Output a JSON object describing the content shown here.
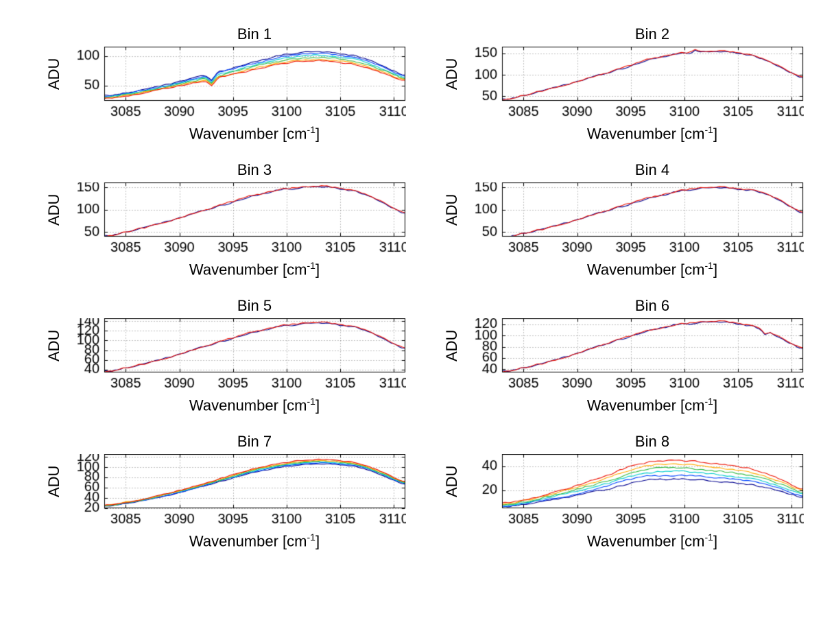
{
  "figure": {
    "background": "#ffffff"
  },
  "labels": {
    "ylabel": "ADU",
    "xlabel_pre": "Wavenumber [cm",
    "xlabel_sup": "-1",
    "xlabel_post": "]"
  },
  "axes_common": {
    "xlim": [
      3083,
      3111
    ],
    "xticks": [
      3085,
      3090,
      3095,
      3100,
      3105,
      3110
    ],
    "x_control": [
      3083,
      3085,
      3087,
      3089,
      3091,
      3093,
      3095,
      3097,
      3099,
      3101,
      3103,
      3105,
      3107,
      3109,
      3111
    ],
    "grid": true,
    "legend": null
  },
  "chart_data": [
    {
      "type": "line",
      "title": "Bin 1",
      "xlabel": "Wavenumber [cm^-1]",
      "ylabel": "ADU",
      "ylim": [
        25,
        115
      ],
      "yticks": [
        50,
        100
      ],
      "noise": 1.5,
      "spikes": [
        {
          "x": 3093,
          "dy": -10,
          "width": 0.6
        }
      ],
      "series": [
        {
          "name": "trace-1",
          "color": "#00008f",
          "values": [
            33,
            38,
            45,
            53,
            62,
            70,
            80,
            90,
            99,
            105,
            107,
            104,
            97,
            83,
            68
          ]
        },
        {
          "name": "trace-2",
          "color": "#0044ff",
          "values": [
            32,
            37,
            44,
            51,
            60,
            68,
            78,
            87,
            96,
            102,
            104,
            101,
            94,
            81,
            66
          ]
        },
        {
          "name": "trace-3",
          "color": "#00cccc",
          "values": [
            31,
            36,
            42,
            50,
            58,
            66,
            75,
            85,
            93,
            99,
            101,
            98,
            91,
            78,
            64
          ]
        },
        {
          "name": "trace-4",
          "color": "#33bb44",
          "values": [
            30,
            35,
            41,
            48,
            56,
            64,
            73,
            82,
            90,
            96,
            97,
            95,
            88,
            76,
            62
          ]
        },
        {
          "name": "trace-5",
          "color": "#ffaa00",
          "values": [
            29,
            33,
            40,
            47,
            55,
            62,
            70,
            79,
            87,
            92,
            94,
            92,
            85,
            73,
            60
          ]
        },
        {
          "name": "trace-6",
          "color": "#ee1100",
          "values": [
            28,
            33,
            39,
            46,
            53,
            60,
            69,
            77,
            85,
            90,
            92,
            89,
            83,
            71,
            59
          ]
        }
      ]
    },
    {
      "type": "line",
      "title": "Bin 2",
      "xlabel": "Wavenumber [cm^-1]",
      "ylabel": "ADU",
      "ylim": [
        40,
        165
      ],
      "yticks": [
        50,
        100,
        150
      ],
      "noise": 2.5,
      "spikes": [
        {
          "x": 3101,
          "dy": 7,
          "width": 0.4
        }
      ],
      "series": [
        {
          "name": "trace-1",
          "color": "#00008f",
          "values": [
            42,
            52,
            65,
            78,
            92,
            106,
            121,
            137,
            147,
            152,
            154,
            151,
            139,
            117,
            94
          ]
        },
        {
          "name": "trace-2",
          "color": "#ee1100",
          "values": [
            42,
            52,
            65,
            78,
            92,
            106,
            122,
            138,
            148,
            153,
            155,
            152,
            140,
            118,
            95
          ]
        }
      ]
    },
    {
      "type": "line",
      "title": "Bin 3",
      "xlabel": "Wavenumber [cm^-1]",
      "ylabel": "ADU",
      "ylim": [
        40,
        160
      ],
      "yticks": [
        50,
        100,
        150
      ],
      "noise": 2.5,
      "spikes": [],
      "series": [
        {
          "name": "trace-1",
          "color": "#00008f",
          "values": [
            40,
            50,
            62,
            75,
            89,
            103,
            117,
            131,
            142,
            148,
            151,
            147,
            136,
            115,
            92
          ]
        },
        {
          "name": "trace-2",
          "color": "#ee1100",
          "values": [
            40,
            50,
            62,
            75,
            89,
            103,
            118,
            132,
            143,
            149,
            152,
            148,
            137,
            116,
            93
          ]
        }
      ]
    },
    {
      "type": "line",
      "title": "Bin 4",
      "xlabel": "Wavenumber [cm^-1]",
      "ylabel": "ADU",
      "ylim": [
        40,
        160
      ],
      "yticks": [
        50,
        100,
        150
      ],
      "noise": 2.5,
      "spikes": [],
      "series": [
        {
          "name": "trace-1",
          "color": "#00008f",
          "values": [
            38,
            47,
            58,
            71,
            85,
            99,
            113,
            127,
            138,
            146,
            149,
            146,
            139,
            119,
            93
          ]
        },
        {
          "name": "trace-2",
          "color": "#ee1100",
          "values": [
            38,
            47,
            58,
            71,
            85,
            99,
            114,
            128,
            139,
            147,
            150,
            147,
            140,
            120,
            94
          ]
        }
      ]
    },
    {
      "type": "line",
      "title": "Bin 5",
      "xlabel": "Wavenumber [cm^-1]",
      "ylabel": "ADU",
      "ylim": [
        35,
        145
      ],
      "yticks": [
        40,
        60,
        80,
        100,
        120,
        140
      ],
      "noise": 2.2,
      "spikes": [],
      "series": [
        {
          "name": "trace-1",
          "color": "#00008f",
          "values": [
            36,
            44,
            54,
            66,
            79,
            92,
            105,
            117,
            127,
            133,
            136,
            132,
            123,
            104,
            84
          ]
        },
        {
          "name": "trace-2",
          "color": "#ee1100",
          "values": [
            36,
            44,
            54,
            66,
            79,
            92,
            105,
            118,
            128,
            134,
            137,
            133,
            124,
            105,
            85
          ]
        }
      ]
    },
    {
      "type": "line",
      "title": "Bin 6",
      "xlabel": "Wavenumber [cm^-1]",
      "ylabel": "ADU",
      "ylim": [
        35,
        130
      ],
      "yticks": [
        40,
        60,
        80,
        100,
        120
      ],
      "noise": 2.0,
      "spikes": [
        {
          "x": 3107.5,
          "dy": -7,
          "width": 0.5
        }
      ],
      "series": [
        {
          "name": "trace-1",
          "color": "#00008f",
          "values": [
            36,
            43,
            52,
            63,
            75,
            87,
            99,
            110,
            118,
            122,
            124,
            121,
            112,
            95,
            77
          ]
        },
        {
          "name": "trace-2",
          "color": "#ee1100",
          "values": [
            36,
            43,
            52,
            63,
            75,
            87,
            99,
            110,
            118,
            123,
            125,
            122,
            113,
            96,
            78
          ]
        }
      ]
    },
    {
      "type": "line",
      "title": "Bin 7",
      "xlabel": "Wavenumber [cm^-1]",
      "ylabel": "ADU",
      "ylim": [
        20,
        125
      ],
      "yticks": [
        20,
        40,
        60,
        80,
        100,
        120
      ],
      "noise": 1.2,
      "spikes": [],
      "series": [
        {
          "name": "trace-1",
          "color": "#00008f",
          "values": [
            23,
            29,
            36,
            45,
            56,
            67,
            79,
            90,
            98,
            104,
            106,
            105,
            98,
            83,
            67
          ]
        },
        {
          "name": "trace-2",
          "color": "#0044ff",
          "values": [
            24,
            29,
            37,
            46,
            56,
            68,
            80,
            91,
            100,
            105,
            108,
            106,
            100,
            85,
            68
          ]
        },
        {
          "name": "trace-3",
          "color": "#00cccc",
          "values": [
            24,
            30,
            37,
            47,
            57,
            69,
            81,
            93,
            101,
            107,
            110,
            108,
            101,
            86,
            69
          ]
        },
        {
          "name": "trace-4",
          "color": "#33bb44",
          "values": [
            24,
            30,
            38,
            48,
            58,
            70,
            82,
            94,
            103,
            109,
            112,
            110,
            103,
            87,
            70
          ]
        },
        {
          "name": "trace-5",
          "color": "#ffaa00",
          "values": [
            25,
            31,
            38,
            48,
            59,
            71,
            84,
            96,
            104,
            110,
            113,
            111,
            104,
            89,
            71
          ]
        },
        {
          "name": "trace-6",
          "color": "#ee1100",
          "values": [
            25,
            31,
            39,
            49,
            60,
            72,
            85,
            97,
            106,
            112,
            115,
            113,
            106,
            90,
            72
          ]
        }
      ]
    },
    {
      "type": "line",
      "title": "Bin 8",
      "xlabel": "Wavenumber [cm^-1]",
      "ylabel": "ADU",
      "ylim": [
        5,
        50
      ],
      "yticks": [
        20,
        40
      ],
      "noise": 0.8,
      "spikes": [],
      "series": [
        {
          "name": "trace-1",
          "color": "#00008f",
          "values": [
            6,
            8,
            11,
            14,
            18,
            21,
            26,
            29,
            29,
            29,
            27,
            26,
            23,
            19,
            14
          ]
        },
        {
          "name": "trace-2",
          "color": "#0044ff",
          "values": [
            6,
            9,
            12,
            15,
            19,
            24,
            29,
            32,
            32,
            32,
            30,
            29,
            26,
            21,
            15
          ]
        },
        {
          "name": "trace-3",
          "color": "#00cccc",
          "values": [
            7,
            9,
            13,
            17,
            21,
            26,
            32,
            35,
            36,
            35,
            33,
            31,
            28,
            23,
            17
          ]
        },
        {
          "name": "trace-4",
          "color": "#33bb44",
          "values": [
            8,
            10,
            14,
            18,
            23,
            28,
            34,
            38,
            39,
            38,
            36,
            34,
            31,
            25,
            18
          ]
        },
        {
          "name": "trace-5",
          "color": "#ffaa00",
          "values": [
            8,
            11,
            15,
            20,
            25,
            31,
            37,
            41,
            42,
            41,
            39,
            37,
            33,
            27,
            20
          ]
        },
        {
          "name": "trace-6",
          "color": "#ee1100",
          "values": [
            9,
            12,
            16,
            21,
            27,
            33,
            40,
            44,
            45,
            44,
            42,
            40,
            36,
            29,
            21
          ]
        }
      ]
    }
  ]
}
